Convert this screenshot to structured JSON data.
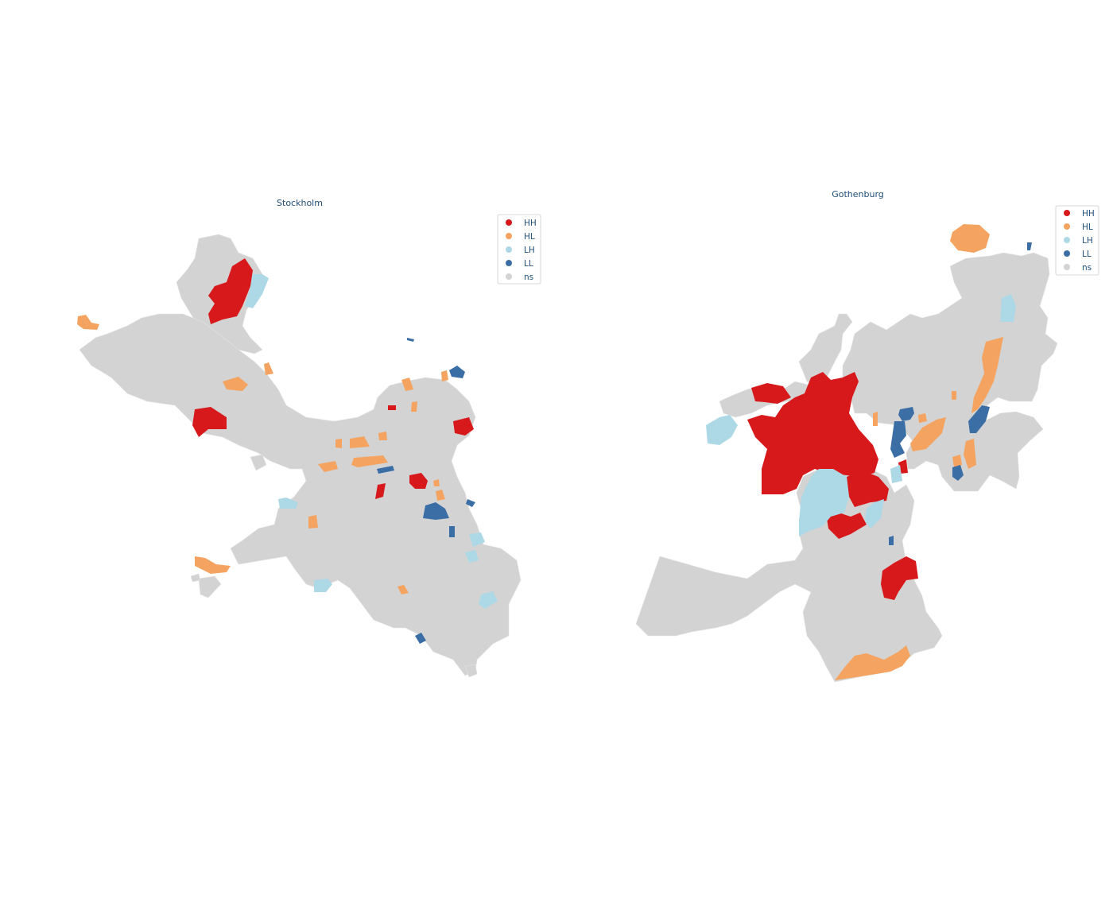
{
  "maps": [
    {
      "title": "Stockholm",
      "legend": [
        {
          "label": "HH",
          "color": "#d7191c"
        },
        {
          "label": "HL",
          "color": "#fdae61"
        },
        {
          "label": "LH",
          "color": "#abd9e9"
        },
        {
          "label": "LL",
          "color": "#2c7bb6"
        },
        {
          "label": "ns",
          "color": "#d3d3d3"
        }
      ]
    },
    {
      "title": "Gothenburg",
      "legend": [
        {
          "label": "HH",
          "color": "#d7191c"
        },
        {
          "label": "HL",
          "color": "#fdae61"
        },
        {
          "label": "LH",
          "color": "#abd9e9"
        },
        {
          "label": "LL",
          "color": "#2c7bb6"
        },
        {
          "label": "ns",
          "color": "#d3d3d3"
        }
      ]
    }
  ],
  "colors": {
    "HH": "#d7191c",
    "HL": "#f4a460",
    "LH": "#add8e6",
    "LL": "#3a6ea5",
    "ns": "#d3d3d3"
  }
}
